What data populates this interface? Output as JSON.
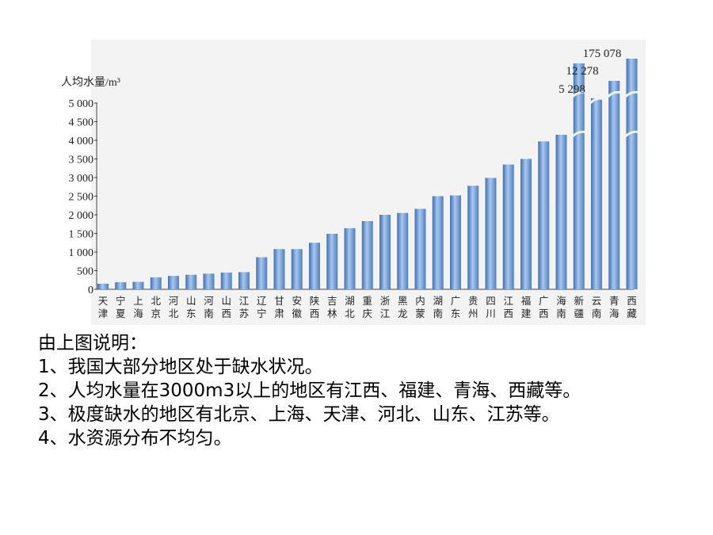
{
  "chart_data": {
    "type": "bar",
    "ylabel": "人均水量/m³",
    "yticks": [
      "0",
      "500",
      "1 000",
      "1 500",
      "2 000",
      "2 500",
      "3 000",
      "3 500",
      "4 000",
      "4 500",
      "5 000"
    ],
    "ylim": [
      0,
      5000
    ],
    "axis_break": true,
    "bar_color": "#6f9bd3",
    "categories": [
      [
        "天",
        "津"
      ],
      [
        "宁",
        "夏"
      ],
      [
        "上",
        "海"
      ],
      [
        "北",
        "京"
      ],
      [
        "河",
        "北"
      ],
      [
        "山",
        "东"
      ],
      [
        "河",
        "南"
      ],
      [
        "山",
        "西"
      ],
      [
        "江",
        "苏"
      ],
      [
        "辽",
        "宁"
      ],
      [
        "甘",
        "肃"
      ],
      [
        "安",
        "徽"
      ],
      [
        "陕",
        "西"
      ],
      [
        "吉",
        "林"
      ],
      [
        "湖",
        "北"
      ],
      [
        "重",
        "庆"
      ],
      [
        "浙",
        "江"
      ],
      [
        "黑",
        "龙"
      ],
      [
        "内",
        "蒙"
      ],
      [
        "湖",
        "南"
      ],
      [
        "广",
        "东"
      ],
      [
        "贵",
        "州"
      ],
      [
        "四",
        "川"
      ],
      [
        "江",
        "西"
      ],
      [
        "福",
        "建"
      ],
      [
        "广",
        "西"
      ],
      [
        "海",
        "南"
      ],
      [
        "新",
        "疆"
      ],
      [
        "云",
        "南"
      ],
      [
        "青",
        "海"
      ],
      [
        "西",
        "藏"
      ]
    ],
    "values": [
      150,
      190,
      200,
      320,
      360,
      390,
      420,
      450,
      460,
      860,
      1080,
      1080,
      1250,
      1490,
      1640,
      1830,
      2000,
      2050,
      2160,
      2500,
      2520,
      2780,
      2990,
      3350,
      3500,
      3970,
      4150,
      5298,
      5500,
      12278,
      175078
    ],
    "value_labels": [
      {
        "index": 27,
        "text": "5 298"
      },
      {
        "index": 29,
        "text": "12 278"
      },
      {
        "index": 30,
        "text": "175 078"
      }
    ]
  },
  "notes": {
    "heading": "由上图说明：",
    "lines": [
      "1、我国大部分地区处于缺水状况。",
      "2、人均水量在3000m3以上的地区有江西、福建、青海、西藏等。",
      "3、极度缺水的地区有北京、上海、天津、河北、山东、江苏等。",
      "4、水资源分布不均匀。"
    ]
  }
}
